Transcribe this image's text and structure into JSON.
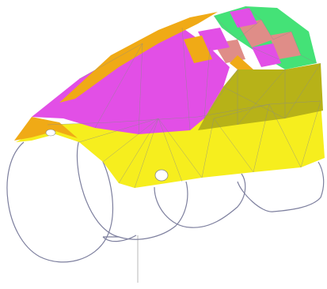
{
  "viewport": {
    "background": "#ffffff"
  },
  "colors": {
    "magenta": "#e24fe6",
    "magenta_dark": "#b93dc3",
    "yellow": "#f6ee1e",
    "yellow_dark": "#c5bd18",
    "olive": "#b7b218",
    "orange": "#f0aa16",
    "green": "#44e277",
    "salmon": "#df8d88",
    "mesh_line": "#8a8a8a",
    "outline": "#7d7f9e",
    "axis": "#b9b9b9"
  },
  "marks": {
    "hole_left": "hole-marker",
    "hole_center": "hole-marker"
  }
}
